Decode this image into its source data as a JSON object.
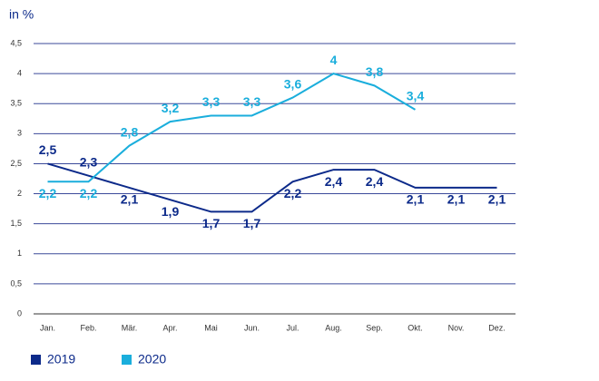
{
  "chart_data": {
    "type": "line",
    "y_label": "in %",
    "categories": [
      "Jan.",
      "Feb.",
      "Mär.",
      "Apr.",
      "Mai",
      "Jun.",
      "Jul.",
      "Aug.",
      "Sep.",
      "Okt.",
      "Nov.",
      "Dez."
    ],
    "series": [
      {
        "name": "2019",
        "color": "#0c2a8a",
        "values": [
          2.5,
          2.3,
          2.1,
          1.9,
          1.7,
          1.7,
          2.2,
          2.4,
          2.4,
          2.1,
          2.1,
          2.1
        ],
        "value_labels": [
          "2,5",
          "2,3",
          "2,1",
          "1,9",
          "1,7",
          "1,7",
          "2,2",
          "2,4",
          "2,4",
          "2,1",
          "2,1",
          "2,1"
        ]
      },
      {
        "name": "2020",
        "color": "#1aaedc",
        "values": [
          2.2,
          2.2,
          2.8,
          3.2,
          3.3,
          3.3,
          3.6,
          4,
          3.8,
          3.4,
          null,
          null
        ],
        "value_labels": [
          "2,2",
          "2,2",
          "2,8",
          "3,2",
          "3,3",
          "3,3",
          "3,6",
          "4",
          "3,8",
          "3,4",
          null,
          null
        ]
      }
    ],
    "ylim": [
      0,
      4.5
    ],
    "yticks": [
      0,
      {
        "value": 0.5,
        "label": "0,5"
      },
      1,
      {
        "value": 1.5,
        "label": "1,5"
      },
      2,
      {
        "value": 2.5,
        "label": "2,5"
      },
      3,
      {
        "value": 3.5,
        "label": "3,5"
      },
      4,
      {
        "value": 4.5,
        "label": "4,5"
      }
    ],
    "grid": true
  }
}
